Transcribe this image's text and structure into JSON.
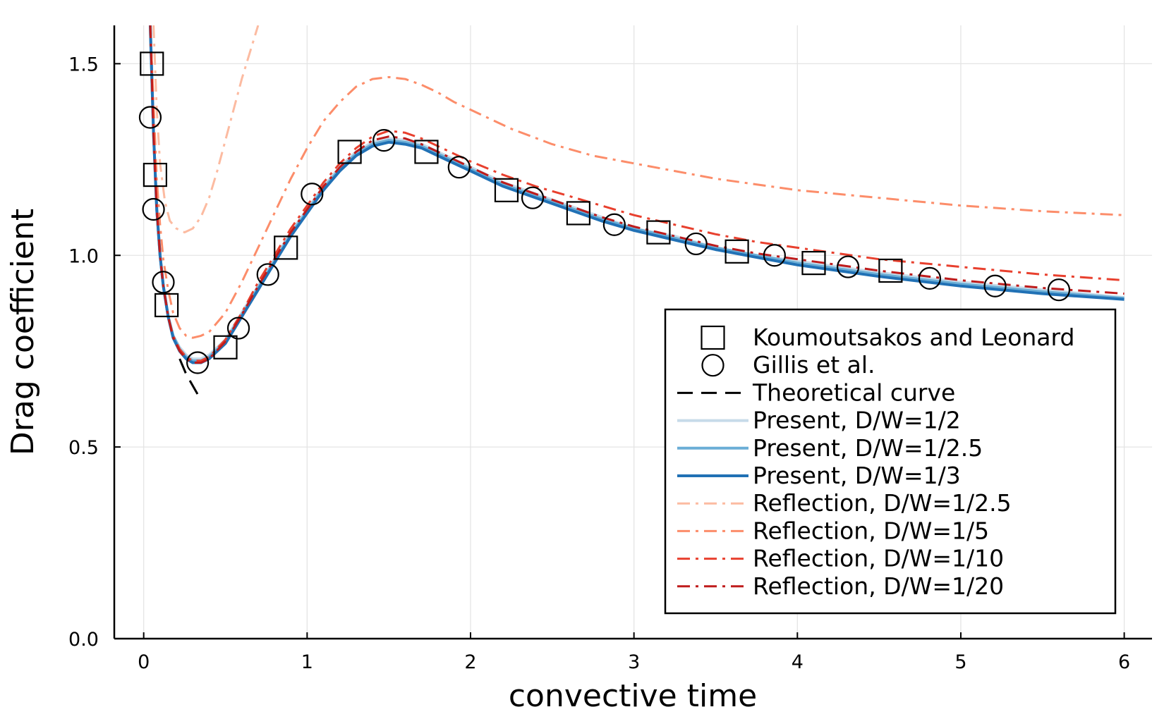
{
  "chart_data": {
    "type": "line",
    "title": "",
    "xlabel": "convective time",
    "ylabel": "Drag coefficient",
    "xlim": [
      -0.18,
      6.17
    ],
    "ylim": [
      0.0,
      1.6
    ],
    "x_ticks": [
      0,
      1,
      2,
      3,
      4,
      5,
      6
    ],
    "x_tick_labels": [
      "0",
      "1",
      "2",
      "3",
      "4",
      "5",
      "6"
    ],
    "y_ticks": [
      0.0,
      0.5,
      1.0,
      1.5
    ],
    "y_tick_labels": [
      "0.0",
      "0.5",
      "1.0",
      "1.5"
    ],
    "grid": true,
    "legend_position": "bottom-right",
    "series": [
      {
        "name": "Koumoutsakos and Leonard",
        "kind": "markers",
        "marker": "square",
        "color": "#000000",
        "x": [
          0.05,
          0.07,
          0.14,
          0.5,
          0.87,
          1.26,
          1.73,
          2.22,
          2.66,
          3.15,
          3.63,
          4.1,
          4.57
        ],
        "y": [
          1.5,
          1.21,
          0.87,
          0.76,
          1.02,
          1.27,
          1.27,
          1.17,
          1.11,
          1.06,
          1.01,
          0.98,
          0.96
        ]
      },
      {
        "name": "Gillis et al.",
        "kind": "markers",
        "marker": "circle",
        "color": "#000000",
        "x": [
          0.04,
          0.06,
          0.12,
          0.33,
          0.58,
          0.76,
          1.03,
          1.47,
          1.93,
          2.38,
          2.88,
          3.38,
          3.86,
          4.31,
          4.81,
          5.21,
          5.6
        ],
        "y": [
          1.36,
          1.12,
          0.93,
          0.72,
          0.81,
          0.95,
          1.16,
          1.3,
          1.23,
          1.15,
          1.08,
          1.03,
          1.0,
          0.97,
          0.94,
          0.92,
          0.91
        ]
      },
      {
        "name": "Theoretical curve",
        "kind": "line",
        "dash": "dash",
        "color": "#000000",
        "width": 3,
        "x": [
          0.22,
          0.26,
          0.3,
          0.34
        ],
        "y": [
          0.73,
          0.69,
          0.66,
          0.63
        ]
      },
      {
        "name": "Present, D/W=1/2",
        "kind": "line",
        "dash": "solid",
        "color": "#c7dbe9",
        "width": 4,
        "x": [
          0.04,
          0.06,
          0.08,
          0.1,
          0.12,
          0.15,
          0.18,
          0.22,
          0.26,
          0.3,
          0.35,
          0.4,
          0.5,
          0.6,
          0.7,
          0.8,
          0.9,
          1.0,
          1.1,
          1.2,
          1.3,
          1.4,
          1.5,
          1.6,
          1.7,
          1.8,
          1.9,
          2.0,
          2.2,
          2.4,
          2.6,
          2.8,
          3.0,
          3.25,
          3.5,
          3.75,
          4.0,
          4.5,
          5.0,
          5.5,
          6.0
        ],
        "y": [
          1.6,
          1.32,
          1.12,
          1.0,
          0.92,
          0.84,
          0.79,
          0.76,
          0.74,
          0.73,
          0.73,
          0.74,
          0.78,
          0.85,
          0.92,
          0.99,
          1.06,
          1.12,
          1.18,
          1.23,
          1.27,
          1.295,
          1.305,
          1.3,
          1.29,
          1.27,
          1.25,
          1.23,
          1.19,
          1.16,
          1.13,
          1.1,
          1.07,
          1.05,
          1.02,
          1.0,
          0.985,
          0.955,
          0.93,
          0.91,
          0.89
        ]
      },
      {
        "name": "Present, D/W=1/2.5",
        "kind": "line",
        "dash": "solid",
        "color": "#6baed6",
        "width": 4,
        "x": [
          0.04,
          0.06,
          0.08,
          0.1,
          0.12,
          0.15,
          0.18,
          0.22,
          0.26,
          0.3,
          0.35,
          0.4,
          0.5,
          0.6,
          0.7,
          0.8,
          0.9,
          1.0,
          1.1,
          1.2,
          1.3,
          1.4,
          1.5,
          1.6,
          1.7,
          1.8,
          1.9,
          2.0,
          2.2,
          2.4,
          2.6,
          2.8,
          3.0,
          3.25,
          3.5,
          3.75,
          4.0,
          4.5,
          5.0,
          5.5,
          6.0
        ],
        "y": [
          1.6,
          1.32,
          1.12,
          1.0,
          0.92,
          0.84,
          0.79,
          0.755,
          0.735,
          0.725,
          0.725,
          0.735,
          0.775,
          0.845,
          0.915,
          0.985,
          1.055,
          1.115,
          1.175,
          1.225,
          1.265,
          1.29,
          1.3,
          1.295,
          1.285,
          1.265,
          1.245,
          1.225,
          1.185,
          1.155,
          1.125,
          1.095,
          1.07,
          1.045,
          1.02,
          1.0,
          0.98,
          0.95,
          0.925,
          0.905,
          0.888
        ]
      },
      {
        "name": "Present, D/W=1/3",
        "kind": "line",
        "dash": "solid",
        "color": "#2171b5",
        "width": 4,
        "x": [
          0.04,
          0.06,
          0.08,
          0.1,
          0.12,
          0.15,
          0.18,
          0.22,
          0.26,
          0.3,
          0.35,
          0.4,
          0.5,
          0.6,
          0.7,
          0.8,
          0.9,
          1.0,
          1.1,
          1.2,
          1.3,
          1.4,
          1.5,
          1.6,
          1.7,
          1.8,
          1.9,
          2.0,
          2.2,
          2.4,
          2.6,
          2.8,
          3.0,
          3.25,
          3.5,
          3.75,
          4.0,
          4.5,
          5.0,
          5.5,
          6.0
        ],
        "y": [
          1.6,
          1.32,
          1.12,
          1.0,
          0.92,
          0.84,
          0.785,
          0.75,
          0.73,
          0.72,
          0.72,
          0.73,
          0.77,
          0.84,
          0.91,
          0.98,
          1.05,
          1.11,
          1.17,
          1.22,
          1.26,
          1.285,
          1.295,
          1.29,
          1.28,
          1.26,
          1.24,
          1.22,
          1.18,
          1.15,
          1.12,
          1.09,
          1.065,
          1.04,
          1.015,
          0.995,
          0.975,
          0.945,
          0.92,
          0.9,
          0.885
        ]
      },
      {
        "name": "Reflection, D/W=1/2.5",
        "kind": "line",
        "dash": "dashdot",
        "color": "#fcbba1",
        "width": 3,
        "x": [
          0.06,
          0.08,
          0.1,
          0.13,
          0.16,
          0.2,
          0.25,
          0.3,
          0.35,
          0.4,
          0.45,
          0.5,
          0.55,
          0.6,
          0.65,
          0.7
        ],
        "y": [
          1.6,
          1.38,
          1.24,
          1.14,
          1.09,
          1.07,
          1.06,
          1.07,
          1.1,
          1.15,
          1.22,
          1.3,
          1.38,
          1.46,
          1.53,
          1.6
        ]
      },
      {
        "name": "Reflection, D/W=1/5",
        "kind": "line",
        "dash": "dashdot",
        "color": "#fc8d6a",
        "width": 3,
        "x": [
          0.04,
          0.06,
          0.08,
          0.1,
          0.12,
          0.15,
          0.18,
          0.22,
          0.26,
          0.3,
          0.35,
          0.4,
          0.5,
          0.6,
          0.7,
          0.8,
          0.9,
          1.0,
          1.1,
          1.2,
          1.3,
          1.4,
          1.5,
          1.6,
          1.7,
          1.8,
          1.9,
          2.0,
          2.25,
          2.5,
          2.75,
          3.0,
          3.5,
          4.0,
          4.5,
          5.0,
          5.5,
          6.0
        ],
        "y": [
          1.6,
          1.4,
          1.2,
          1.08,
          0.99,
          0.91,
          0.85,
          0.81,
          0.79,
          0.785,
          0.79,
          0.8,
          0.85,
          0.93,
          1.02,
          1.11,
          1.2,
          1.28,
          1.35,
          1.4,
          1.44,
          1.46,
          1.465,
          1.46,
          1.445,
          1.425,
          1.4,
          1.38,
          1.33,
          1.29,
          1.26,
          1.24,
          1.2,
          1.17,
          1.15,
          1.13,
          1.115,
          1.105
        ]
      },
      {
        "name": "Reflection, D/W=1/10",
        "kind": "line",
        "dash": "dashdot",
        "color": "#e8402e",
        "width": 3,
        "x": [
          0.04,
          0.06,
          0.08,
          0.1,
          0.12,
          0.15,
          0.18,
          0.22,
          0.26,
          0.3,
          0.35,
          0.4,
          0.5,
          0.6,
          0.7,
          0.8,
          0.9,
          1.0,
          1.1,
          1.2,
          1.3,
          1.4,
          1.5,
          1.6,
          1.7,
          1.8,
          1.9,
          2.0,
          2.2,
          2.4,
          2.6,
          2.8,
          3.0,
          3.25,
          3.5,
          3.75,
          4.0,
          4.5,
          5.0,
          5.5,
          6.0
        ],
        "y": [
          1.6,
          1.32,
          1.12,
          1.0,
          0.92,
          0.84,
          0.79,
          0.755,
          0.735,
          0.725,
          0.725,
          0.735,
          0.78,
          0.85,
          0.93,
          1.0,
          1.07,
          1.13,
          1.19,
          1.24,
          1.28,
          1.31,
          1.325,
          1.32,
          1.305,
          1.285,
          1.265,
          1.245,
          1.21,
          1.18,
          1.155,
          1.13,
          1.105,
          1.08,
          1.055,
          1.035,
          1.02,
          0.99,
          0.97,
          0.95,
          0.935
        ]
      },
      {
        "name": "Reflection, D/W=1/20",
        "kind": "line",
        "dash": "dashdot",
        "color": "#bf1c1c",
        "width": 3,
        "x": [
          0.04,
          0.06,
          0.08,
          0.1,
          0.12,
          0.15,
          0.18,
          0.22,
          0.26,
          0.3,
          0.35,
          0.4,
          0.5,
          0.6,
          0.7,
          0.8,
          0.9,
          1.0,
          1.1,
          1.2,
          1.3,
          1.4,
          1.5,
          1.6,
          1.7,
          1.8,
          1.9,
          2.0,
          2.2,
          2.4,
          2.6,
          2.8,
          3.0,
          3.25,
          3.5,
          3.75,
          4.0,
          4.5,
          5.0,
          5.5,
          6.0
        ],
        "y": [
          1.6,
          1.32,
          1.12,
          1.0,
          0.92,
          0.84,
          0.785,
          0.75,
          0.73,
          0.72,
          0.72,
          0.73,
          0.775,
          0.845,
          0.92,
          0.99,
          1.06,
          1.12,
          1.18,
          1.23,
          1.27,
          1.3,
          1.31,
          1.305,
          1.29,
          1.27,
          1.25,
          1.23,
          1.19,
          1.16,
          1.13,
          1.1,
          1.075,
          1.05,
          1.025,
          1.005,
          0.99,
          0.96,
          0.935,
          0.915,
          0.9
        ]
      }
    ]
  }
}
